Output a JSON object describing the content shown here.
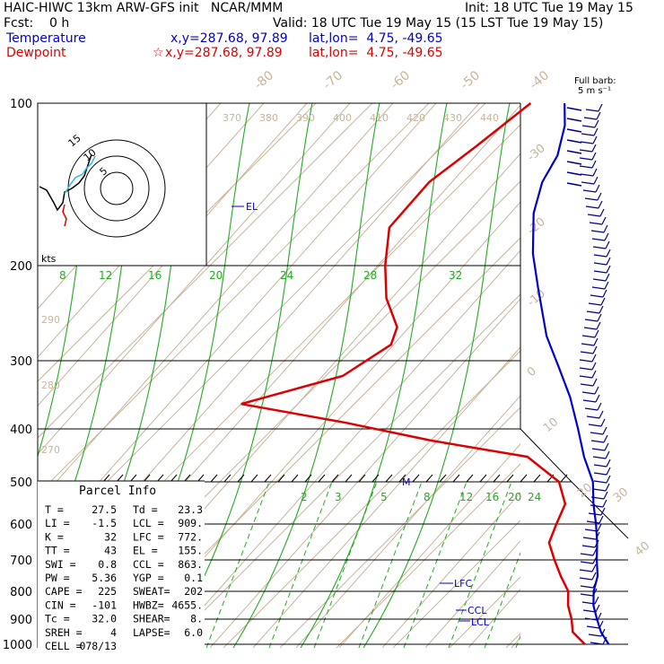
{
  "header": {
    "model": "HAIC-HIWC 13km ARW-GFS init   NCAR/MMM",
    "init": "Init: 18 UTC Tue 19 May 15",
    "fcst": "Fcst:    0 h",
    "valid": "Valid: 18 UTC Tue 19 May 15 (15 LST Tue 19 May 15)",
    "temperature_label": "Temperature",
    "dewpoint_label": "Dewpoint",
    "temp_xy": "x,y=287.68, 97.89",
    "dew_xy": "x,y=287.68, 97.89",
    "temp_latlon": "lat,lon=  4.75, -49.65",
    "dew_latlon": "lat,lon=  4.75, -49.65",
    "star": "☆"
  },
  "barb_legend": {
    "line1": "Full barb:",
    "line2": "5 m s⁻¹"
  },
  "hodograph": {
    "units": "kts",
    "ring_labels": [
      "5",
      "10",
      "15"
    ]
  },
  "parcel": {
    "title": "Parcel Info",
    "rows": [
      {
        "l": "T  =",
        "v": "27.5",
        "l2": "Td =",
        "v2": "23.3"
      },
      {
        "l": "LI =",
        "v": "-1.5",
        "l2": "LCL =",
        "v2": "909."
      },
      {
        "l": "K  =",
        "v": "32",
        "l2": "LFC =",
        "v2": "772."
      },
      {
        "l": "TT =",
        "v": "43",
        "l2": "EL  =",
        "v2": "155."
      },
      {
        "l": "SWI =",
        "v": "0.8",
        "l2": "CCL =",
        "v2": "863."
      },
      {
        "l": "PW =",
        "v": "5.36",
        "l2": "YGP =",
        "v2": "0.1"
      },
      {
        "l": "CAPE =",
        "v": "225",
        "l2": "SWEAT=",
        "v2": "202"
      },
      {
        "l": "CIN =",
        "v": "-101",
        "l2": "HWBZ=",
        "v2": "4655."
      },
      {
        "l": "Tc =",
        "v": "32.0",
        "l2": "SHEAR=",
        "v2": "8."
      },
      {
        "l": "SREH =",
        "v": "4",
        "l2": "LAPSE=",
        "v2": "6.0"
      },
      {
        "l": "CELL =",
        "v": "078/13",
        "l2": "",
        "v2": ""
      }
    ]
  },
  "chart_data": {
    "type": "line",
    "pressure_levels": [
      100,
      200,
      300,
      400,
      500,
      600,
      700,
      800,
      900,
      1000
    ],
    "temperature_ticks": [
      -80,
      -70,
      -60,
      -50,
      -40,
      -30,
      -20,
      -10,
      0,
      10,
      20,
      30,
      40
    ],
    "theta_labels": [
      370,
      380,
      390,
      400,
      410,
      420,
      430,
      440
    ],
    "theta_side_labels": [
      290,
      280,
      270
    ],
    "mixing_ratio_labels": [
      2,
      3,
      5,
      8,
      12,
      16,
      20,
      24
    ],
    "theta_e_labels": [
      8,
      12,
      16,
      20,
      24,
      28,
      32
    ],
    "level_markers": [
      "EL",
      "LFC",
      "CCL",
      "LCL",
      "M"
    ],
    "colors": {
      "temperature": "#0000cc",
      "dewpoint": "#dd0000",
      "isotherm": "#c8b49a",
      "adiabat": "#22aa22"
    },
    "series": [
      {
        "name": "Temperature",
        "color": "#0000cc",
        "points": [
          [
            100,
            -76
          ],
          [
            110,
            -72
          ],
          [
            125,
            -68
          ],
          [
            140,
            -66
          ],
          [
            160,
            -62
          ],
          [
            190,
            -55
          ],
          [
            220,
            -48
          ],
          [
            270,
            -38
          ],
          [
            310,
            -30
          ],
          [
            350,
            -23
          ],
          [
            400,
            -16
          ],
          [
            450,
            -10
          ],
          [
            500,
            -4
          ],
          [
            550,
            0
          ],
          [
            600,
            4
          ],
          [
            650,
            7.5
          ],
          [
            700,
            10.5
          ],
          [
            750,
            13.5
          ],
          [
            800,
            15.5
          ],
          [
            850,
            18
          ],
          [
            900,
            21
          ],
          [
            950,
            24
          ],
          [
            1000,
            27.5
          ]
        ]
      },
      {
        "name": "Dewpoint",
        "color": "#dd0000",
        "points": [
          [
            100,
            -82
          ],
          [
            120,
            -84
          ],
          [
            140,
            -86
          ],
          [
            170,
            -85
          ],
          [
            200,
            -79
          ],
          [
            230,
            -73
          ],
          [
            260,
            -66
          ],
          [
            280,
            -64
          ],
          [
            320,
            -67
          ],
          [
            360,
            -80
          ],
          [
            390,
            -58
          ],
          [
            420,
            -40
          ],
          [
            450,
            -20
          ],
          [
            500,
            -10
          ],
          [
            550,
            -5
          ],
          [
            600,
            -3
          ],
          [
            650,
            -1
          ],
          [
            700,
            3
          ],
          [
            750,
            7
          ],
          [
            800,
            11
          ],
          [
            850,
            13.5
          ],
          [
            900,
            16.5
          ],
          [
            950,
            19
          ],
          [
            1000,
            23.3
          ]
        ]
      }
    ]
  }
}
